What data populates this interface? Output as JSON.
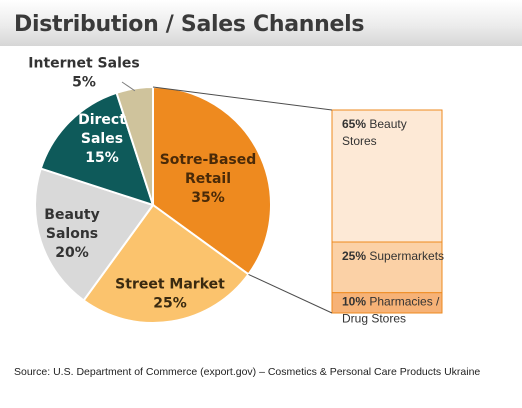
{
  "title": "Distribution / Sales Channels",
  "source": "Source: U.S. Department of Commerce (export.gov) – Cosmetics & Personal Care Products Ukraine",
  "chart_data": [
    {
      "type": "pie",
      "slices": [
        {
          "label_lines": [
            "Sotre-Based",
            "Retail"
          ],
          "pct_text": "35%",
          "value": 35,
          "color": "#ee8a1f",
          "text_color": "#4a2a08"
        },
        {
          "label_lines": [
            "Street Market"
          ],
          "pct_text": "25%",
          "value": 25,
          "color": "#fbc36d",
          "text_color": "#3a2a10"
        },
        {
          "label_lines": [
            "Beauty",
            "Salons"
          ],
          "pct_text": "20%",
          "value": 20,
          "color": "#d9d9d9",
          "text_color": "#333333"
        },
        {
          "label_lines": [
            "Direct",
            "Sales"
          ],
          "pct_text": "15%",
          "value": 15,
          "color": "#0e5a5a",
          "text_color": "#ffffff"
        },
        {
          "label_lines": [
            "Internet Sales"
          ],
          "pct_text": "5%",
          "value": 5,
          "color": "#cfc39c",
          "text_color": "#333333"
        }
      ]
    },
    {
      "type": "bar",
      "stacked": true,
      "breakdown_of": "Sotre-Based Retail",
      "segments": [
        {
          "pct_text": "65%",
          "label_lines": [
            "Beauty",
            "Stores"
          ],
          "value": 65,
          "color": "#fde9d6"
        },
        {
          "pct_text": "25%",
          "label_lines": [
            "Supermarkets"
          ],
          "value": 25,
          "color": "#fbd1a6"
        },
        {
          "pct_text": "10%",
          "label_lines": [
            "Pharmacies /",
            "Drug Stores"
          ],
          "value": 10,
          "color": "#f6b277"
        }
      ]
    }
  ]
}
